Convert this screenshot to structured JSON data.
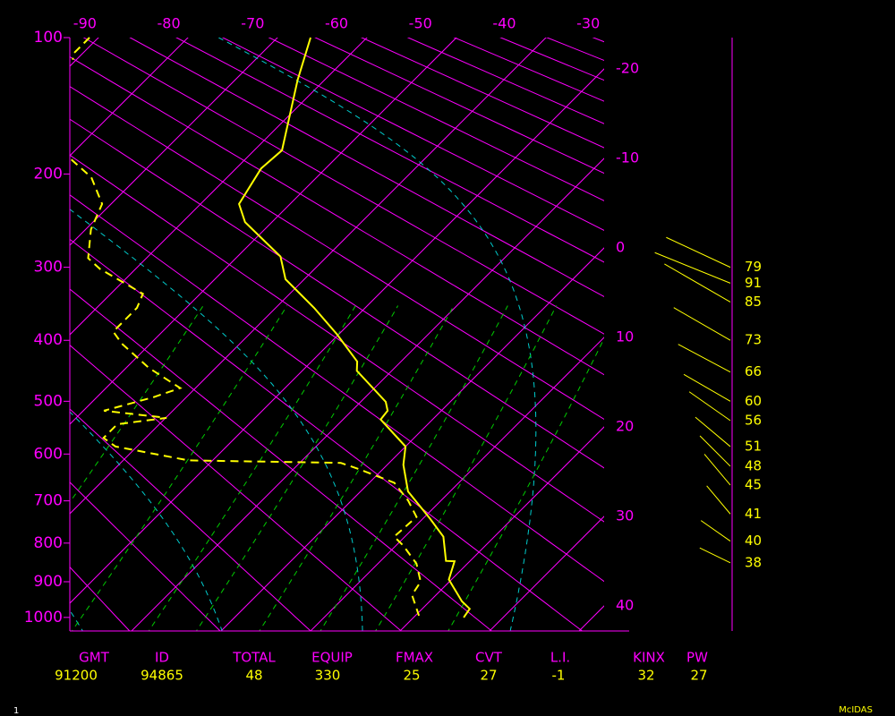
{
  "chart_data": {
    "type": "skewt",
    "ylim": [
      100,
      1040
    ],
    "yticks": [
      100,
      200,
      300,
      400,
      500,
      600,
      700,
      800,
      900,
      1000
    ],
    "xlim": [
      -16.9,
      42.8
    ],
    "xticks": [
      -20,
      -10,
      0,
      10,
      20,
      30,
      40
    ],
    "top_lim": [
      -91.8,
      -28.1
    ],
    "top_ticks": [
      -90,
      -80,
      -70,
      -60,
      -50,
      -40,
      -30
    ],
    "grid_color": "#ff00ff",
    "series": [
      {
        "color": "#ffff00",
        "dashed": false,
        "pressure": [
          100,
          126,
          179,
          195,
          229,
          248,
          287,
          315,
          353,
          391,
          433,
          448,
          501,
          517,
          533,
          585,
          622,
          679,
          741,
          784,
          845,
          846,
          894,
          954,
          975,
          1000
        ],
        "values": [
          -56.3,
          -53.0,
          -46.9,
          -47.2,
          -45.7,
          -43.0,
          -35.2,
          -32.1,
          -25.7,
          -20.2,
          -14.9,
          -13.9,
          -7.2,
          -6.0,
          -5.8,
          0.0,
          1.8,
          5.3,
          10.8,
          14.3,
          17.3,
          18.3,
          19.7,
          23.6,
          25.3,
          25.6
        ]
      },
      {
        "color": "#ffff00",
        "dashed": true,
        "pressure": [
          100,
          109,
          113,
          150,
          187,
          203,
          229,
          256,
          289,
          302,
          334,
          353,
          387,
          405,
          443,
          477,
          493,
          517,
          530,
          542,
          568,
          585,
          613,
          618,
          631,
          660,
          699,
          737,
          784,
          806,
          852,
          900,
          936,
          995
        ],
        "values": [
          -81.0,
          -81.0,
          -80.4,
          null,
          -69.4,
          -65.2,
          -61.0,
          -59.4,
          -56.5,
          -54.0,
          -46.4,
          -45.5,
          -45.5,
          -43.2,
          -37.5,
          -31.7,
          -33.7,
          -37.7,
          -29.9,
          -34.7,
          -34.7,
          -32.4,
          -22.7,
          -5.4,
          -2.7,
          2.8,
          6.3,
          9.1,
          8.8,
          10.8,
          14.3,
          16.8,
          17.3,
          20.4
        ]
      }
    ],
    "winds": {
      "color": "#ffff00",
      "pressure": [
        300,
        320,
        345,
        400,
        450,
        500,
        535,
        585,
        625,
        665,
        730,
        795,
        850
      ],
      "speeds": [
        79,
        91,
        85,
        73,
        66,
        60,
        56,
        51,
        48,
        45,
        41,
        40,
        38
      ],
      "directions": [
        295,
        292,
        300,
        300,
        298,
        300,
        305,
        310,
        315,
        320,
        320,
        305,
        296
      ]
    },
    "indices": {
      "headers": [
        "GMT",
        "ID",
        "TOTAL",
        "EQUIP",
        "FMAX",
        "CVT",
        "L.I.",
        "KINX",
        "PW"
      ],
      "values": [
        "91200",
        "94865",
        48,
        330,
        25,
        27,
        -1,
        32,
        27
      ]
    },
    "footer": {
      "page": 1,
      "source": "McIDAS"
    }
  }
}
